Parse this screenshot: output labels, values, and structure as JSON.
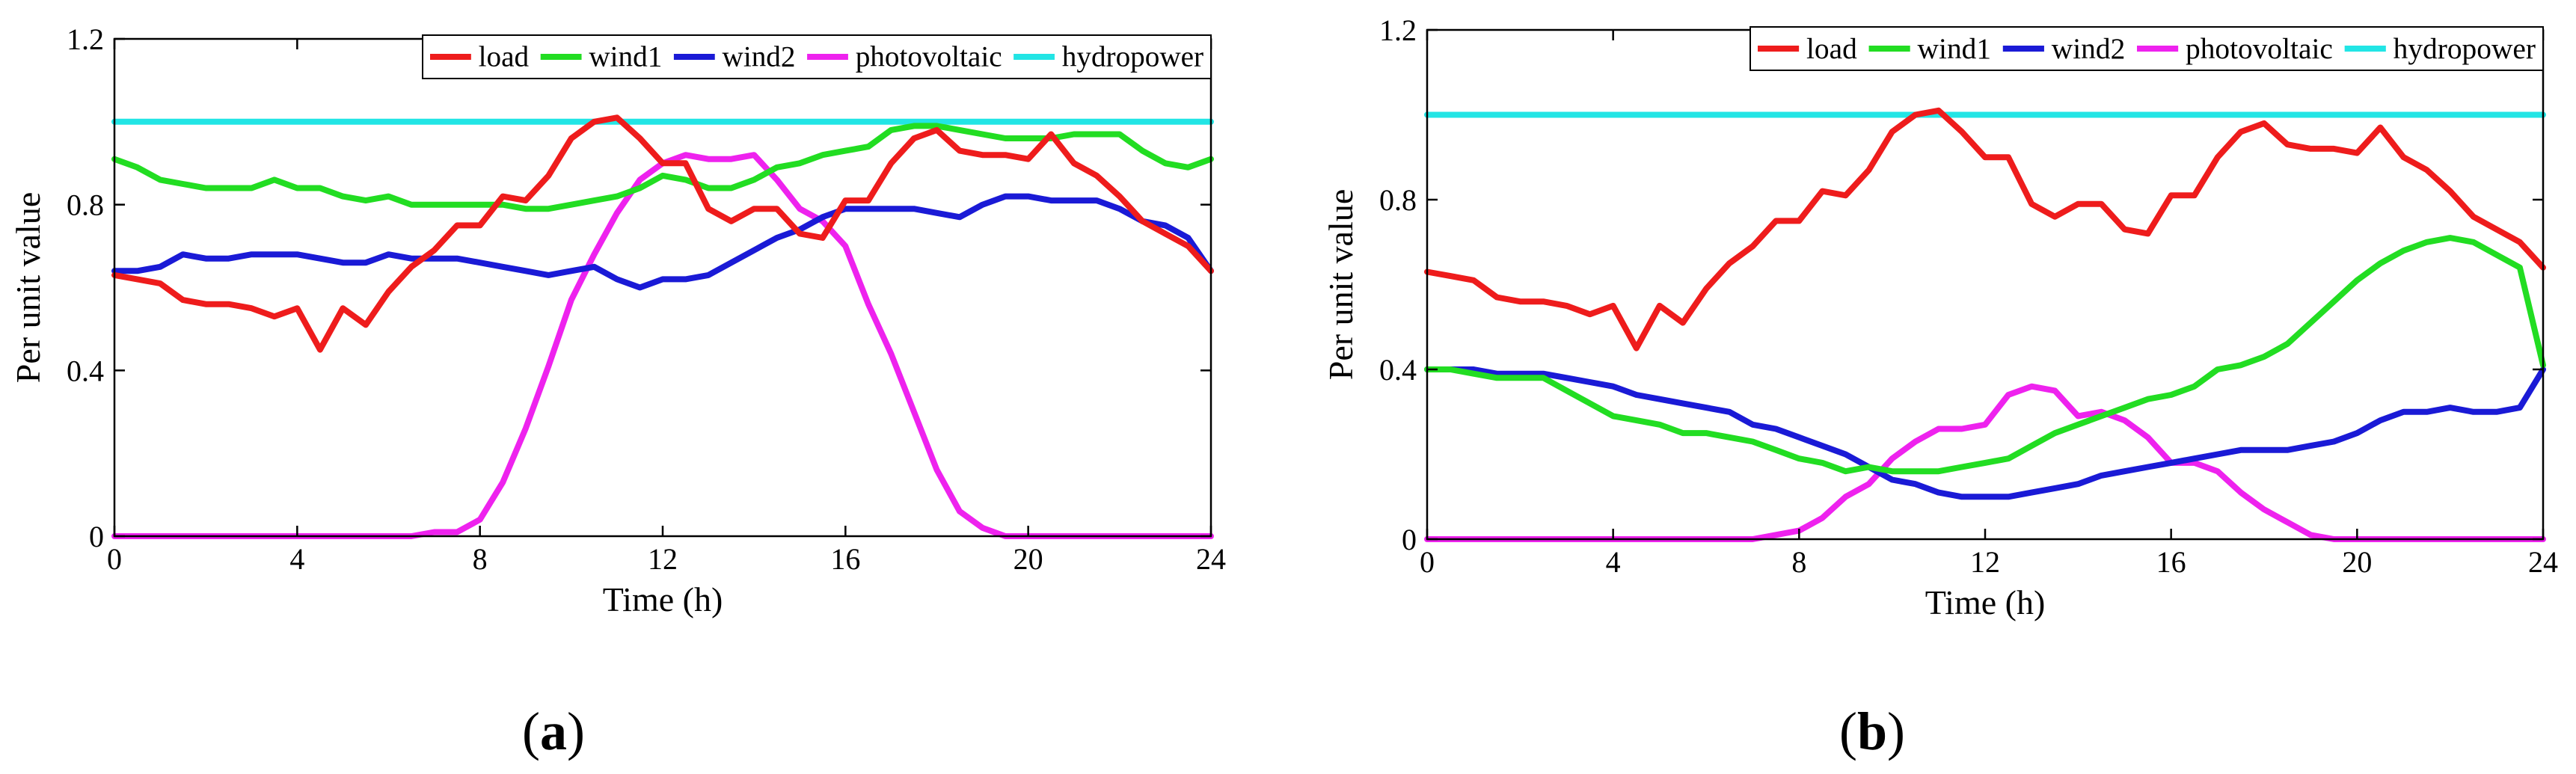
{
  "chart_data": [
    {
      "type": "line",
      "panel_label": "(a)",
      "panel_letter": "a",
      "title": "",
      "xlabel": "Time (h)",
      "ylabel": "Per unit value",
      "xlim": [
        0,
        24
      ],
      "ylim": [
        0,
        1.2
      ],
      "xticks": [
        0,
        4,
        8,
        12,
        16,
        20,
        24
      ],
      "yticks": [
        0,
        0.4,
        0.8,
        1.2
      ],
      "xtick_labels": [
        "0",
        "4",
        "8",
        "12",
        "16",
        "20",
        "24"
      ],
      "ytick_labels": [
        "0",
        "0.4",
        "0.8",
        "1.2"
      ],
      "legend_position": "top-right",
      "grid": false,
      "x": [
        0,
        0.5,
        1,
        1.5,
        2,
        2.5,
        3,
        3.5,
        4,
        4.5,
        5,
        5.5,
        6,
        6.5,
        7,
        7.5,
        8,
        8.5,
        9,
        9.5,
        10,
        10.5,
        11,
        11.5,
        12,
        12.5,
        13,
        13.5,
        14,
        14.5,
        15,
        15.5,
        16,
        16.5,
        17,
        17.5,
        18,
        18.5,
        19,
        19.5,
        20,
        20.5,
        21,
        21.5,
        22,
        22.5,
        23,
        23.5,
        24
      ],
      "series": [
        {
          "name": "load",
          "color": "#ee1c1c",
          "values": [
            0.63,
            0.62,
            0.61,
            0.57,
            0.56,
            0.56,
            0.55,
            0.53,
            0.55,
            0.45,
            0.55,
            0.51,
            0.59,
            0.65,
            0.69,
            0.75,
            0.75,
            0.82,
            0.81,
            0.87,
            0.96,
            1.0,
            1.01,
            0.96,
            0.9,
            0.9,
            0.79,
            0.76,
            0.79,
            0.79,
            0.73,
            0.72,
            0.81,
            0.81,
            0.9,
            0.96,
            0.98,
            0.93,
            0.92,
            0.92,
            0.91,
            0.97,
            0.9,
            0.87,
            0.82,
            0.76,
            0.73,
            0.7,
            0.64
          ]
        },
        {
          "name": "wind1",
          "color": "#22dd22",
          "values": [
            0.91,
            0.89,
            0.86,
            0.85,
            0.84,
            0.84,
            0.84,
            0.86,
            0.84,
            0.84,
            0.82,
            0.81,
            0.82,
            0.8,
            0.8,
            0.8,
            0.8,
            0.8,
            0.79,
            0.79,
            0.8,
            0.81,
            0.82,
            0.84,
            0.87,
            0.86,
            0.84,
            0.84,
            0.86,
            0.89,
            0.9,
            0.92,
            0.93,
            0.94,
            0.98,
            0.99,
            0.99,
            0.98,
            0.97,
            0.96,
            0.96,
            0.96,
            0.97,
            0.97,
            0.97,
            0.93,
            0.9,
            0.89,
            0.91
          ]
        },
        {
          "name": "wind2",
          "color": "#1a1ad6",
          "values": [
            0.64,
            0.64,
            0.65,
            0.68,
            0.67,
            0.67,
            0.68,
            0.68,
            0.68,
            0.67,
            0.66,
            0.66,
            0.68,
            0.67,
            0.67,
            0.67,
            0.66,
            0.65,
            0.64,
            0.63,
            0.64,
            0.65,
            0.62,
            0.6,
            0.62,
            0.62,
            0.63,
            0.66,
            0.69,
            0.72,
            0.74,
            0.77,
            0.79,
            0.79,
            0.79,
            0.79,
            0.78,
            0.77,
            0.8,
            0.82,
            0.82,
            0.81,
            0.81,
            0.81,
            0.79,
            0.76,
            0.75,
            0.72,
            0.64
          ]
        },
        {
          "name": "photovoltaic",
          "color": "#ee22ee",
          "values": [
            0,
            0,
            0,
            0,
            0,
            0,
            0,
            0,
            0,
            0,
            0,
            0,
            0,
            0,
            0.01,
            0.01,
            0.04,
            0.13,
            0.26,
            0.41,
            0.57,
            0.68,
            0.78,
            0.86,
            0.9,
            0.92,
            0.91,
            0.91,
            0.92,
            0.86,
            0.79,
            0.76,
            0.7,
            0.56,
            0.44,
            0.3,
            0.16,
            0.06,
            0.02,
            0,
            0,
            0,
            0,
            0,
            0,
            0,
            0,
            0,
            0
          ]
        },
        {
          "name": "hydropower",
          "color": "#22e5e5",
          "values": [
            1,
            1,
            1,
            1,
            1,
            1,
            1,
            1,
            1,
            1,
            1,
            1,
            1,
            1,
            1,
            1,
            1,
            1,
            1,
            1,
            1,
            1,
            1,
            1,
            1,
            1,
            1,
            1,
            1,
            1,
            1,
            1,
            1,
            1,
            1,
            1,
            1,
            1,
            1,
            1,
            1,
            1,
            1,
            1,
            1,
            1,
            1,
            1,
            1
          ]
        }
      ]
    },
    {
      "type": "line",
      "panel_label": "(b)",
      "panel_letter": "b",
      "title": "",
      "xlabel": "Time (h)",
      "ylabel": "Per unit value",
      "xlim": [
        0,
        24
      ],
      "ylim": [
        0,
        1.2
      ],
      "xticks": [
        0,
        4,
        8,
        12,
        16,
        20,
        24
      ],
      "yticks": [
        0,
        0.4,
        0.8,
        1.2
      ],
      "xtick_labels": [
        "0",
        "4",
        "8",
        "12",
        "16",
        "20",
        "24"
      ],
      "ytick_labels": [
        "0",
        "0.4",
        "0.8",
        "1.2"
      ],
      "legend_position": "top-right",
      "grid": false,
      "x": [
        0,
        0.5,
        1,
        1.5,
        2,
        2.5,
        3,
        3.5,
        4,
        4.5,
        5,
        5.5,
        6,
        6.5,
        7,
        7.5,
        8,
        8.5,
        9,
        9.5,
        10,
        10.5,
        11,
        11.5,
        12,
        12.5,
        13,
        13.5,
        14,
        14.5,
        15,
        15.5,
        16,
        16.5,
        17,
        17.5,
        18,
        18.5,
        19,
        19.5,
        20,
        20.5,
        21,
        21.5,
        22,
        22.5,
        23,
        23.5,
        24
      ],
      "series": [
        {
          "name": "load",
          "color": "#ee1c1c",
          "values": [
            0.63,
            0.62,
            0.61,
            0.57,
            0.56,
            0.56,
            0.55,
            0.53,
            0.55,
            0.45,
            0.55,
            0.51,
            0.59,
            0.65,
            0.69,
            0.75,
            0.75,
            0.82,
            0.81,
            0.87,
            0.96,
            1.0,
            1.01,
            0.96,
            0.9,
            0.9,
            0.79,
            0.76,
            0.79,
            0.79,
            0.73,
            0.72,
            0.81,
            0.81,
            0.9,
            0.96,
            0.98,
            0.93,
            0.92,
            0.92,
            0.91,
            0.97,
            0.9,
            0.87,
            0.82,
            0.76,
            0.73,
            0.7,
            0.64
          ]
        },
        {
          "name": "wind1",
          "color": "#22dd22",
          "values": [
            0.4,
            0.4,
            0.39,
            0.38,
            0.38,
            0.38,
            0.35,
            0.32,
            0.29,
            0.28,
            0.27,
            0.25,
            0.25,
            0.24,
            0.23,
            0.21,
            0.19,
            0.18,
            0.16,
            0.17,
            0.16,
            0.16,
            0.16,
            0.17,
            0.18,
            0.19,
            0.22,
            0.25,
            0.27,
            0.29,
            0.31,
            0.33,
            0.34,
            0.36,
            0.4,
            0.41,
            0.43,
            0.46,
            0.51,
            0.56,
            0.61,
            0.65,
            0.68,
            0.7,
            0.71,
            0.7,
            0.67,
            0.64,
            0.41
          ]
        },
        {
          "name": "wind2",
          "color": "#1a1ad6",
          "values": [
            0.4,
            0.4,
            0.4,
            0.39,
            0.39,
            0.39,
            0.38,
            0.37,
            0.36,
            0.34,
            0.33,
            0.32,
            0.31,
            0.3,
            0.27,
            0.26,
            0.24,
            0.22,
            0.2,
            0.17,
            0.14,
            0.13,
            0.11,
            0.1,
            0.1,
            0.1,
            0.11,
            0.12,
            0.13,
            0.15,
            0.16,
            0.17,
            0.18,
            0.19,
            0.2,
            0.21,
            0.21,
            0.21,
            0.22,
            0.23,
            0.25,
            0.28,
            0.3,
            0.3,
            0.31,
            0.3,
            0.3,
            0.31,
            0.4
          ]
        },
        {
          "name": "photovoltaic",
          "color": "#ee22ee",
          "values": [
            0,
            0,
            0,
            0,
            0,
            0,
            0,
            0,
            0,
            0,
            0,
            0,
            0,
            0,
            0,
            0.01,
            0.02,
            0.05,
            0.1,
            0.13,
            0.19,
            0.23,
            0.26,
            0.26,
            0.27,
            0.34,
            0.36,
            0.35,
            0.29,
            0.3,
            0.28,
            0.24,
            0.18,
            0.18,
            0.16,
            0.11,
            0.07,
            0.04,
            0.01,
            0,
            0,
            0,
            0,
            0,
            0,
            0,
            0,
            0,
            0
          ]
        },
        {
          "name": "hydropower",
          "color": "#22e5e5",
          "values": [
            1,
            1,
            1,
            1,
            1,
            1,
            1,
            1,
            1,
            1,
            1,
            1,
            1,
            1,
            1,
            1,
            1,
            1,
            1,
            1,
            1,
            1,
            1,
            1,
            1,
            1,
            1,
            1,
            1,
            1,
            1,
            1,
            1,
            1,
            1,
            1,
            1,
            1,
            1,
            1,
            1,
            1,
            1,
            1,
            1,
            1,
            1,
            1,
            1
          ]
        }
      ]
    }
  ]
}
